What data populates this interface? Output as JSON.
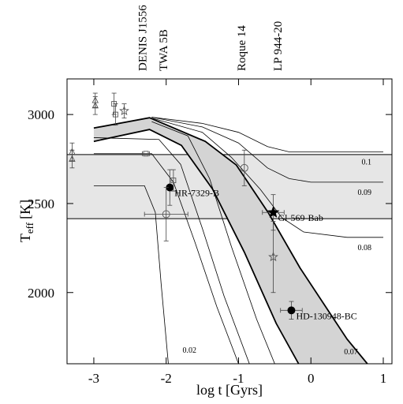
{
  "chart_data": {
    "type": "scatter",
    "xlabel": "log t [Gyrs]",
    "ylabel": "T",
    "ylabel_sub": "eff",
    "ylabel_unit": "[K]",
    "xlim": [
      -3.37,
      1.12
    ],
    "ylim": [
      1600,
      3200
    ],
    "xticks": [
      -3,
      -2,
      -1,
      0,
      1
    ],
    "yticks": [
      2000,
      2500,
      3000
    ],
    "shaded_box": {
      "ylim": [
        2415,
        2775
      ]
    },
    "band": {
      "label": "0.07",
      "upper": {
        "x": [
          -3.0,
          -2.23,
          -1.46,
          -1.03,
          -0.59,
          -0.15,
          0.5,
          0.78
        ],
        "y": [
          2924,
          2982,
          2849,
          2716,
          2449,
          2138,
          1738,
          1600
        ]
      },
      "lower": {
        "x": [
          -3.0,
          -2.23,
          -1.79,
          -1.36,
          -0.92,
          -0.48,
          -0.17
        ],
        "y": [
          2849,
          2916,
          2827,
          2582,
          2227,
          1827,
          1600
        ]
      }
    },
    "tracks": [
      {
        "label": "0.1",
        "x": [
          -2.2,
          -1.5,
          -1.0,
          -0.6,
          -0.3,
          0.0,
          1.0
        ],
        "y": [
          2985,
          2950,
          2900,
          2820,
          2790,
          2790,
          2790
        ]
      },
      {
        "label": "0.09",
        "x": [
          -2.2,
          -1.5,
          -1.0,
          -0.6,
          -0.3,
          0.0,
          1.0
        ],
        "y": [
          2985,
          2930,
          2840,
          2700,
          2640,
          2620,
          2620
        ]
      },
      {
        "label": "0.08",
        "x": [
          -2.2,
          -1.5,
          -1.1,
          -0.7,
          -0.4,
          -0.1,
          0.5,
          1.0
        ],
        "y": [
          2980,
          2900,
          2760,
          2580,
          2420,
          2340,
          2310,
          2310
        ]
      },
      {
        "label": "0.02",
        "x": [
          -3.0,
          -2.3,
          -2.15,
          -2.07,
          -1.97
        ],
        "y": [
          2600,
          2600,
          2450,
          2050,
          1600
        ]
      },
      {
        "x": [
          -3.0,
          -2.2,
          -1.9,
          -1.6,
          -1.3,
          -1.0
        ],
        "y": [
          2780,
          2780,
          2620,
          2280,
          1920,
          1600
        ]
      },
      {
        "x": [
          -3.0,
          -2.1,
          -1.8,
          -1.5,
          -1.2,
          -0.85
        ],
        "y": [
          2870,
          2860,
          2720,
          2360,
          1980,
          1600
        ]
      },
      {
        "x": [
          -2.2,
          -1.7,
          -1.4,
          -1.1,
          -0.75,
          -0.5
        ],
        "y": [
          2960,
          2880,
          2640,
          2260,
          1850,
          1600
        ]
      }
    ],
    "points": [
      {
        "marker": "filled-circle",
        "label": "HR-7329-B",
        "x": -1.95,
        "y": 2590,
        "yerr": 100
      },
      {
        "marker": "filled-star",
        "label": "Gl-569-Bab",
        "x": -0.52,
        "y": 2450,
        "xerr": 0.15,
        "yerr": 100
      },
      {
        "marker": "filled-circle",
        "label": "HD-130948-BC",
        "x": -0.27,
        "y": 1900,
        "xerr": 0.15,
        "yerr": 50
      },
      {
        "marker": "open-circle",
        "x": -2.0,
        "y": 2440,
        "xerr": 0.3,
        "yerr": 150
      },
      {
        "marker": "open-circle",
        "x": -0.92,
        "y": 2700,
        "yerr": 100
      },
      {
        "marker": "open-square",
        "x": -2.28,
        "y": 2780,
        "xerr": 0.05
      },
      {
        "marker": "open-square",
        "x": -1.9,
        "y": 2630,
        "yerr": 60
      },
      {
        "marker": "open-star",
        "x": -0.52,
        "y": 2200,
        "yerr": 200
      },
      {
        "marker": "open-triangle",
        "x": -3.3,
        "y": 2750,
        "yerr": 50
      },
      {
        "marker": "open-triangle",
        "x": -3.3,
        "y": 2790,
        "yerr": 50
      },
      {
        "marker": "open-triangle",
        "x": -2.98,
        "y": 3050,
        "yerr": 50
      },
      {
        "marker": "open-triangle",
        "x": -2.98,
        "y": 3080,
        "yerr": 40
      },
      {
        "marker": "open-square",
        "x": -2.72,
        "y": 3060,
        "yerr": 60
      },
      {
        "marker": "open-square",
        "x": -2.7,
        "y": 3000,
        "yerr": 60
      },
      {
        "marker": "open-star",
        "x": -2.58,
        "y": 3020,
        "yerr": 40
      }
    ],
    "top_labels": [
      {
        "text": "DENIS J1556",
        "x": -2.33
      },
      {
        "text": "TWA 5B",
        "x": -2.04
      },
      {
        "text": "Roque 14",
        "x": -0.96
      },
      {
        "text": "LP 944-20",
        "x": -0.46
      }
    ]
  }
}
